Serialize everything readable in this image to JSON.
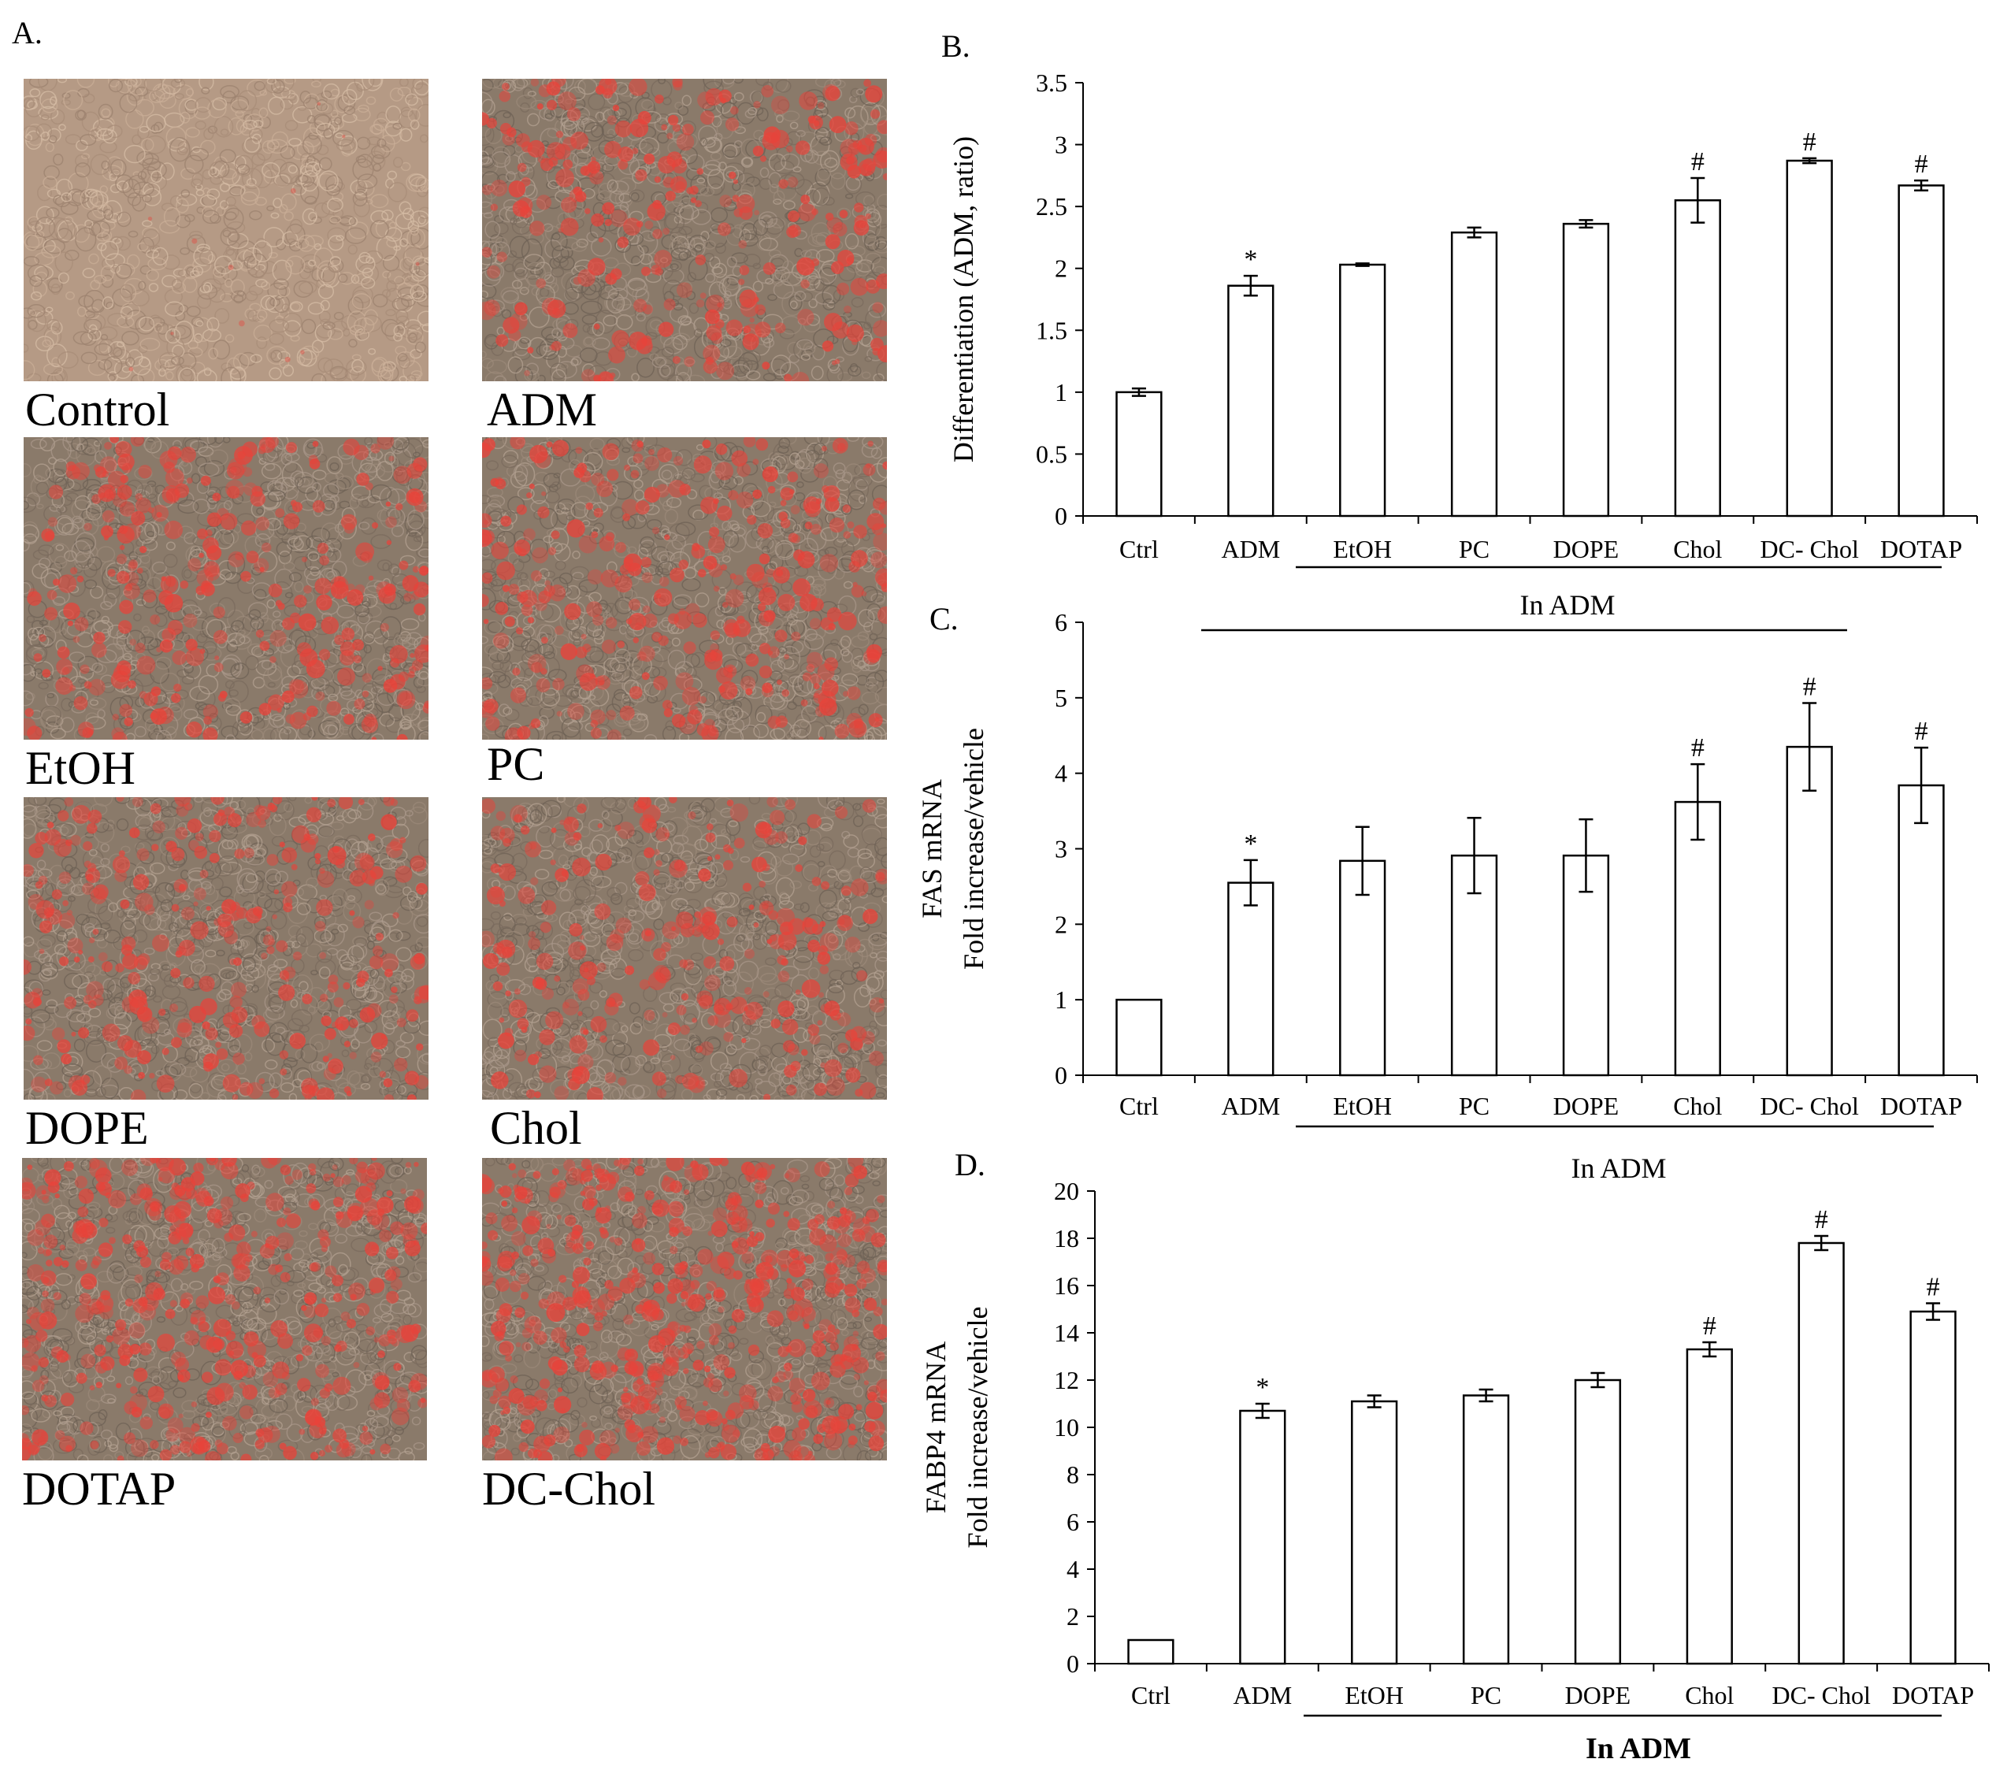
{
  "panel_letters": {
    "a": "A.",
    "b": "B.",
    "c": "C.",
    "d": "D."
  },
  "micrographs": [
    {
      "label": "Control",
      "stain_level": 0.0
    },
    {
      "label": "ADM",
      "stain_level": 0.5
    },
    {
      "label": "EtOH",
      "stain_level": 0.55
    },
    {
      "label": "PC",
      "stain_level": 0.6
    },
    {
      "label": "DOPE",
      "stain_level": 0.55
    },
    {
      "label": "Chol",
      "stain_level": 0.5
    },
    {
      "label": "DOTAP",
      "stain_level": 0.75
    },
    {
      "label": "DC-Chol",
      "stain_level": 0.9
    }
  ],
  "colors": {
    "stain": "#e8433a",
    "background_cells": "#8a7a6a",
    "bar_fill": "#ffffff",
    "line": "#000000"
  },
  "chart_data": [
    {
      "id": "B",
      "type": "bar",
      "title": "",
      "ylabel": "Differentiation (ADM, ratio)",
      "ylabel2": "",
      "categories": [
        "Ctrl",
        "ADM",
        "EtOH",
        "PC",
        "DOPE",
        "Chol",
        "DC- Chol",
        "DOTAP"
      ],
      "values": [
        1.0,
        1.86,
        2.03,
        2.29,
        2.36,
        2.55,
        2.87,
        2.67
      ],
      "errors": [
        0.03,
        0.08,
        0.01,
        0.04,
        0.03,
        0.18,
        0.02,
        0.04
      ],
      "annotations": [
        "",
        "*",
        "",
        "",
        "",
        "#",
        "#",
        "#"
      ],
      "ylim": [
        0,
        3.5
      ],
      "yticks": [
        "0",
        "0.5",
        "1",
        "1.5",
        "2",
        "2.5",
        "3",
        "3.5"
      ],
      "group_label": "In ADM",
      "group_label_bold": false
    },
    {
      "id": "C",
      "type": "bar",
      "title": "",
      "ylabel": "FAS mRNA",
      "ylabel2": "Fold  increase/vehicle",
      "categories": [
        "Ctrl",
        "ADM",
        "EtOH",
        "PC",
        "DOPE",
        "Chol",
        "DC- Chol",
        "DOTAP"
      ],
      "values": [
        1.0,
        2.55,
        2.84,
        2.91,
        2.91,
        3.62,
        4.35,
        3.84
      ],
      "errors": [
        0.0,
        0.3,
        0.45,
        0.5,
        0.48,
        0.5,
        0.58,
        0.5
      ],
      "annotations": [
        "",
        "*",
        "",
        "",
        "",
        "#",
        "#",
        "#"
      ],
      "ylim": [
        0,
        6
      ],
      "yticks": [
        "0",
        "1",
        "2",
        "3",
        "4",
        "5",
        "6"
      ],
      "group_label": "In ADM",
      "group_label_bold": false
    },
    {
      "id": "D",
      "type": "bar",
      "title": "",
      "ylabel": "FABP4 mRNA",
      "ylabel2": "Fold  increase/vehicle",
      "categories": [
        "Ctrl",
        "ADM",
        "EtOH",
        "PC",
        "DOPE",
        "Chol",
        "DC- Chol",
        "DOTAP"
      ],
      "values": [
        1.0,
        10.7,
        11.1,
        11.35,
        12.0,
        13.3,
        17.8,
        14.9
      ],
      "errors": [
        0.0,
        0.3,
        0.25,
        0.25,
        0.3,
        0.3,
        0.3,
        0.35
      ],
      "annotations": [
        "",
        "*",
        "",
        "",
        "",
        "#",
        "#",
        "#"
      ],
      "ylim": [
        0,
        20
      ],
      "yticks": [
        "0",
        "2",
        "4",
        "6",
        "8",
        "10",
        "12",
        "14",
        "16",
        "18",
        "20"
      ],
      "group_label": "In ADM",
      "group_label_bold": true
    }
  ]
}
